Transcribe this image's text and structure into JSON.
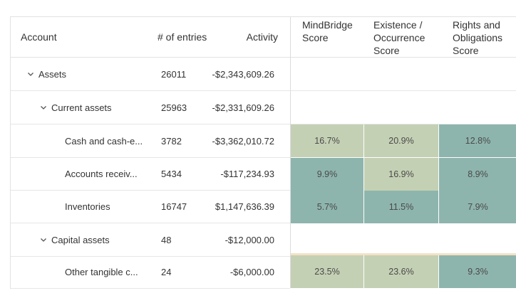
{
  "table": {
    "headers": {
      "account": "Account",
      "entries": "# of entries",
      "activity": "Activity",
      "scores": [
        "MindBridge\nScore",
        "Existence /\nOccurrence\nScore",
        "Rights and\nObligations\nScore"
      ]
    },
    "rows": [
      {
        "type": "group",
        "level": 0,
        "account": "Assets",
        "entries": "26011",
        "activity": "-$2,343,609.26",
        "scores": null
      },
      {
        "type": "group",
        "level": 1,
        "account": "Current assets",
        "entries": "25963",
        "activity": "-$2,331,609.26",
        "scores": null
      },
      {
        "type": "item",
        "level": 2,
        "account": "Cash and cash-e...",
        "entries": "3782",
        "activity": "-$3,362,010.72",
        "scores": [
          {
            "value": "16.7%",
            "color": "#c4d0b4"
          },
          {
            "value": "20.9%",
            "color": "#c4d0b4"
          },
          {
            "value": "12.8%",
            "color": "#8eb5ad"
          }
        ]
      },
      {
        "type": "item",
        "level": 2,
        "account": "Accounts receiv...",
        "entries": "5434",
        "activity": "-$117,234.93",
        "scores": [
          {
            "value": "9.9%",
            "color": "#8eb5ad"
          },
          {
            "value": "16.9%",
            "color": "#c4d0b4"
          },
          {
            "value": "8.9%",
            "color": "#8eb5ad"
          }
        ]
      },
      {
        "type": "item",
        "level": 2,
        "account": "Inventories",
        "entries": "16747",
        "activity": "$1,147,636.39",
        "scores": [
          {
            "value": "5.7%",
            "color": "#8eb5ad"
          },
          {
            "value": "11.5%",
            "color": "#8eb5ad"
          },
          {
            "value": "7.9%",
            "color": "#8eb5ad"
          }
        ]
      },
      {
        "type": "group",
        "level": 1,
        "account": "Capital assets",
        "entries": "48",
        "activity": "-$12,000.00",
        "scores": null
      },
      {
        "type": "item",
        "level": 2,
        "account": "Other tangible c...",
        "entries": "24",
        "activity": "-$6,000.00",
        "scores": [
          {
            "value": "23.5%",
            "color": "#c4d0b4"
          },
          {
            "value": "23.6%",
            "color": "#c4d0b4"
          },
          {
            "value": "9.3%",
            "color": "#8eb5ad"
          }
        ]
      }
    ]
  },
  "colors": {
    "score_high": "#c4d0b4",
    "score_low": "#8eb5ad",
    "border": "#e2e2e2",
    "text": "#333333"
  }
}
